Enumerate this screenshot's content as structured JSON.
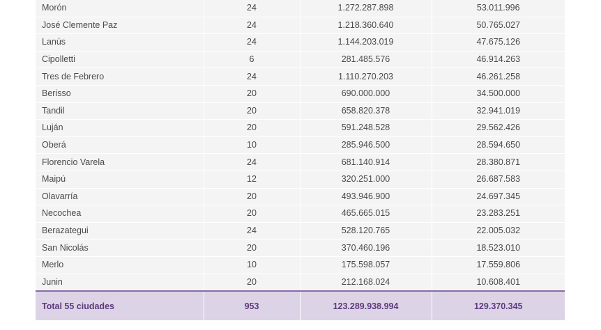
{
  "table": {
    "rows": [
      {
        "city": "Morón",
        "count": "24",
        "amount": "1.272.287.898",
        "per_unit": "53.011.996"
      },
      {
        "city": "José Clemente Paz",
        "count": "24",
        "amount": "1.218.360.640",
        "per_unit": "50.765.027"
      },
      {
        "city": "Lanús",
        "count": "24",
        "amount": "1.144.203.019",
        "per_unit": "47.675.126"
      },
      {
        "city": "Cipolletti",
        "count": "6",
        "amount": "281.485.576",
        "per_unit": "46.914.263"
      },
      {
        "city": "Tres de Febrero",
        "count": "24",
        "amount": "1.110.270.203",
        "per_unit": "46.261.258"
      },
      {
        "city": "Berisso",
        "count": "20",
        "amount": "690.000.000",
        "per_unit": "34.500.000"
      },
      {
        "city": "Tandil",
        "count": "20",
        "amount": "658.820.378",
        "per_unit": "32.941.019"
      },
      {
        "city": "Luján",
        "count": "20",
        "amount": "591.248.528",
        "per_unit": "29.562.426"
      },
      {
        "city": "Oberá",
        "count": "10",
        "amount": "285.946.500",
        "per_unit": "28.594.650"
      },
      {
        "city": "Florencio Varela",
        "count": "24",
        "amount": "681.140.914",
        "per_unit": "28.380.871"
      },
      {
        "city": "Maipú",
        "count": "12",
        "amount": "320.251.000",
        "per_unit": "26.687.583"
      },
      {
        "city": "Olavarría",
        "count": "20",
        "amount": "493.946.900",
        "per_unit": "24.697.345"
      },
      {
        "city": "Necochea",
        "count": "20",
        "amount": "465.665.015",
        "per_unit": "23.283.251"
      },
      {
        "city": "Berazategui",
        "count": "24",
        "amount": "528.120.765",
        "per_unit": "22.005.032"
      },
      {
        "city": "San Nicolás",
        "count": "20",
        "amount": "370.460.196",
        "per_unit": "18.523.010"
      },
      {
        "city": "Merlo",
        "count": "10",
        "amount": "175.598.057",
        "per_unit": "17.559.806"
      },
      {
        "city": "Junin",
        "count": "20",
        "amount": "212.168.024",
        "per_unit": "10.608.401"
      }
    ],
    "total": {
      "label": "Total 55 ciudades",
      "count": "953",
      "amount": "123.289.938.994",
      "per_unit": "129.370.345"
    }
  },
  "colors": {
    "row_bg": "#f4f4f5",
    "total_bg": "#dcd3e6",
    "total_text": "#5e3a7f",
    "total_border": "#8a6aa6"
  }
}
